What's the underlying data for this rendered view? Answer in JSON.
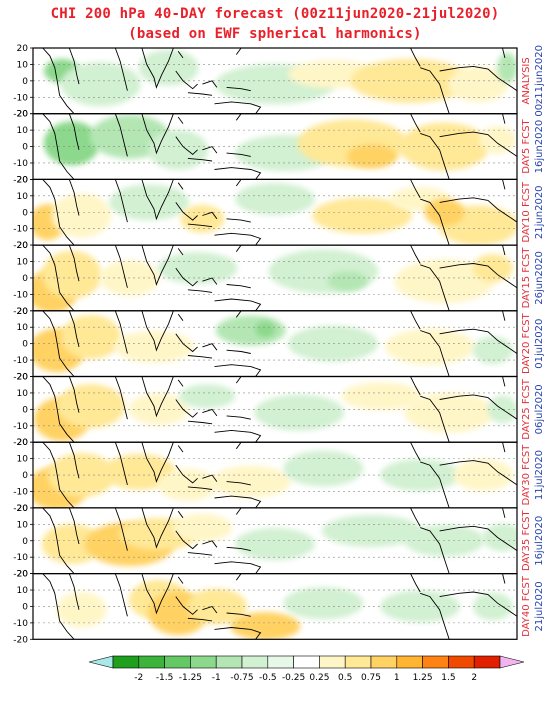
{
  "title": {
    "line1": "CHI 200 hPa 40-DAY forecast (00z11jun2020-21jul2020)",
    "line2": "(based on EWF spherical harmonics)"
  },
  "y_ticks": [
    "20",
    "10",
    "0",
    "-10",
    "-20"
  ],
  "panels": [
    {
      "label": "ANALYSIS",
      "date": "00z11jun2020"
    },
    {
      "label": "DAY5 FCST",
      "date": "16jun2020"
    },
    {
      "label": "DAY10 FCST",
      "date": "21jun2020"
    },
    {
      "label": "DAY15 FCST",
      "date": "26jun2020"
    },
    {
      "label": "DAY20 FCST",
      "date": "01jul2020"
    },
    {
      "label": "DAY25 FCST",
      "date": "06jul2020"
    },
    {
      "label": "DAY30 FCST",
      "date": "11jul2020"
    },
    {
      "label": "DAY35 FCST",
      "date": "16jul2020"
    },
    {
      "label": "DAY40 FCST",
      "date": "21jul2020"
    }
  ],
  "colorbar": {
    "ticks": [
      "-2",
      "-1.5",
      "-1.25",
      "-1",
      "-0.75",
      "-0.5",
      "-0.25",
      "0.25",
      "0.5",
      "0.75",
      "1",
      "1.25",
      "1.5",
      "2"
    ],
    "colors": [
      "#1ea01e",
      "#3cb43c",
      "#64c864",
      "#8cd88c",
      "#b4e6b4",
      "#d2f0d2",
      "#e8f8e8",
      "#ffffff",
      "#fff6c8",
      "#ffe896",
      "#ffd264",
      "#ffb432",
      "#ff8214",
      "#f04a00",
      "#e02000"
    ],
    "under_color": "#a8e8e8",
    "over_color": "#f0b4f0"
  },
  "colors": {
    "title": "#e8202a",
    "label_red": "#e0303a",
    "label_blue": "#2a44b0",
    "coast": "#000000"
  }
}
